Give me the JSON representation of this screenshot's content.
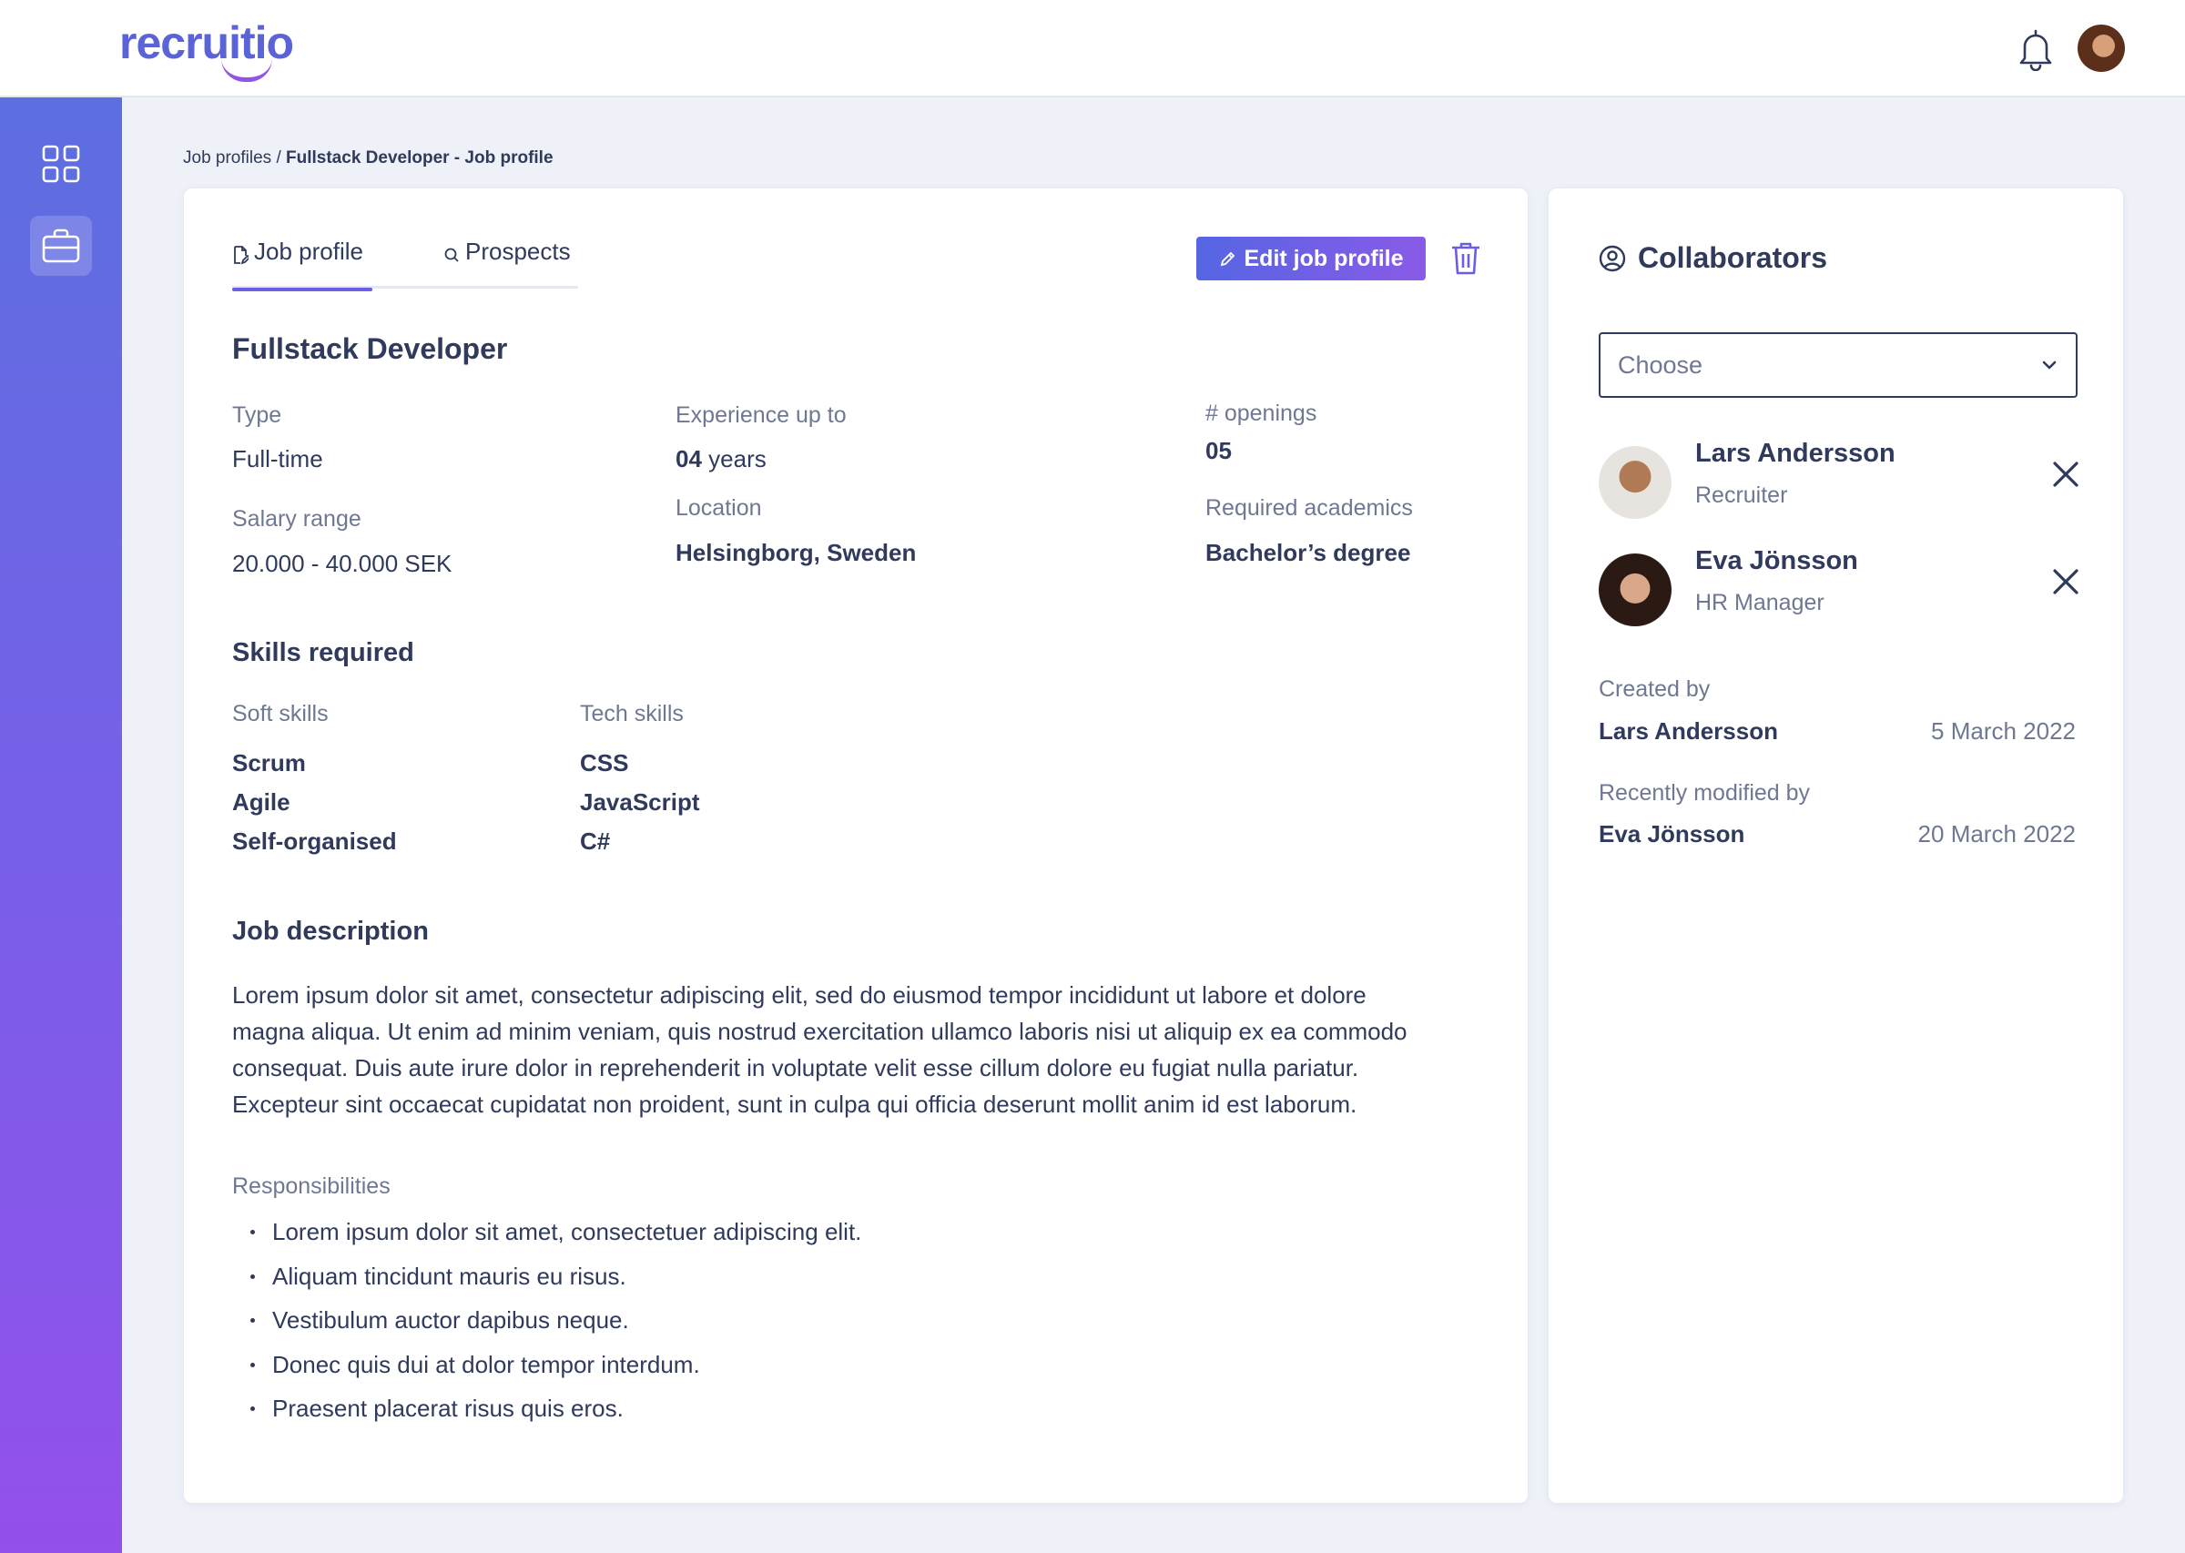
{
  "app": {
    "logo": "recruitio"
  },
  "breadcrumb": {
    "parent": "Job profiles",
    "separator": " / ",
    "current": "Fullstack Developer - Job profile"
  },
  "tabs": [
    {
      "label": "Job profile"
    },
    {
      "label": "Prospects"
    }
  ],
  "actions": {
    "edit_label": "Edit job profile"
  },
  "job": {
    "title": "Fullstack Developer",
    "type_label": "Type",
    "type_value": "Full-time",
    "experience_label": "Experience up to",
    "experience_number": "04",
    "experience_unit": "years",
    "openings_label": "# openings",
    "openings_value": "05",
    "salary_label": "Salary range",
    "salary_value": "20.000 - 40.000 SEK",
    "location_label": "Location",
    "location_value": "Helsingborg, Sweden",
    "academics_label": "Required academics",
    "academics_value": "Bachelor’s degree"
  },
  "skills": {
    "title": "Skills required",
    "soft_label": "Soft skills",
    "soft": [
      "Scrum",
      "Agile",
      "Self-organised"
    ],
    "tech_label": "Tech skills",
    "tech": [
      "CSS",
      "JavaScript",
      "C#"
    ]
  },
  "description": {
    "title": "Job description",
    "text": "Lorem ipsum dolor sit amet, consectetur adipiscing elit, sed do eiusmod tempor incididunt ut labore et dolore magna aliqua. Ut enim ad minim veniam, quis nostrud exercitation ullamco laboris nisi ut aliquip ex ea commodo consequat. Duis aute irure dolor in reprehenderit in voluptate velit esse cillum dolore eu fugiat nulla pariatur. Excepteur sint occaecat cupidatat non proident, sunt in culpa qui officia deserunt mollit anim id est laborum.",
    "responsibilities_label": "Responsibilities",
    "responsibilities": [
      "Lorem ipsum dolor sit amet, consectetuer adipiscing elit.",
      "Aliquam tincidunt mauris eu risus.",
      "Vestibulum auctor dapibus neque.",
      "Donec quis dui at dolor tempor interdum.",
      "Praesent placerat risus quis eros."
    ]
  },
  "collaborators": {
    "title": "Collaborators",
    "select_value": "Choose",
    "people": [
      {
        "name": "Lars Andersson",
        "role": "Recruiter"
      },
      {
        "name": "Eva Jönsson",
        "role": "HR Manager"
      }
    ],
    "created_label": "Created by",
    "created_name": "Lars Andersson",
    "created_date": "5 March 2022",
    "modified_label": "Recently modified by",
    "modified_name": "Eva Jönsson",
    "modified_date": "20 March 2022"
  },
  "colors": {
    "accent": "#6b5ee6",
    "text": "#2f3a5c",
    "muted": "#6f7892"
  }
}
